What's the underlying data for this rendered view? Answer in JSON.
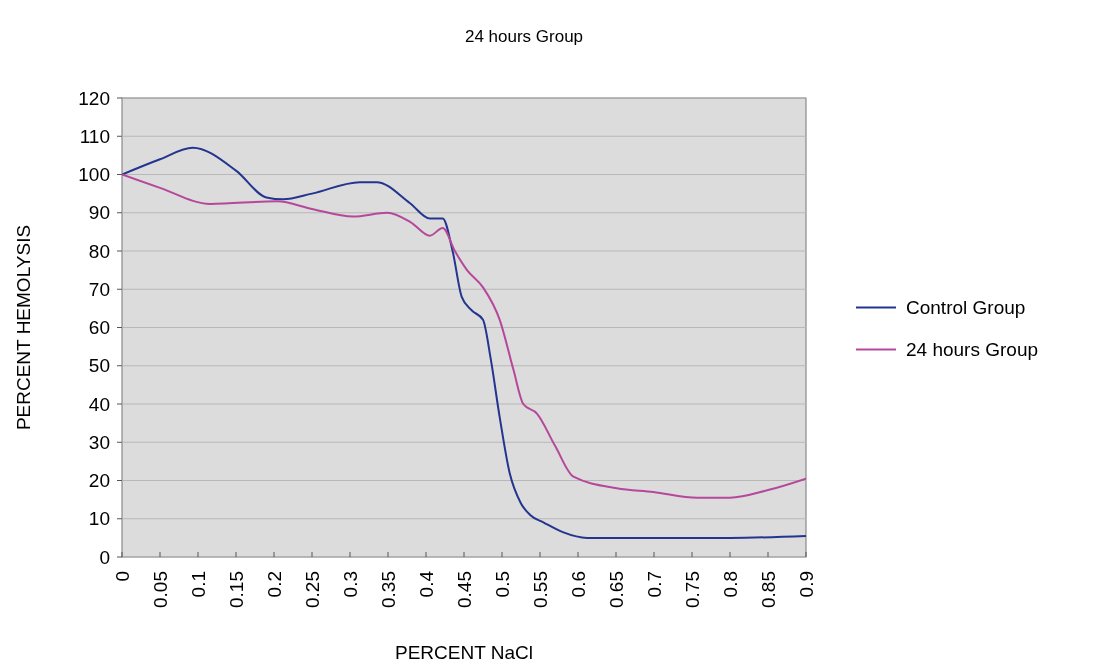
{
  "chart_data": {
    "type": "line",
    "title": "24 hours Group",
    "xlabel": "PERCENT NaCl",
    "ylabel": "PERCENT HEMOLYSIS",
    "xlim": [
      0,
      0.9
    ],
    "xticks": [
      0,
      0.05,
      0.1,
      0.15,
      0.2,
      0.25,
      0.3,
      0.35,
      0.4,
      0.45,
      0.5,
      0.55,
      0.6,
      0.65,
      0.7,
      0.75,
      0.8,
      0.85,
      0.9
    ],
    "ylim": [
      0,
      120
    ],
    "yticks": [
      0,
      10,
      20,
      30,
      40,
      50,
      60,
      70,
      80,
      90,
      100,
      110,
      120
    ],
    "grid": "y",
    "legend": "right",
    "marker": "none",
    "line_style": "solid",
    "series": [
      {
        "name": "Control Group",
        "color": "#23358f",
        "x": [
          0,
          0.05,
          0.093,
          0.15,
          0.19,
          0.212,
          0.25,
          0.313,
          0.335,
          0.379,
          0.405,
          0.422,
          0.435,
          0.447,
          0.46,
          0.475,
          0.485,
          0.497,
          0.51,
          0.525,
          0.537,
          0.555,
          0.58,
          0.612,
          0.7,
          0.8,
          0.9
        ],
        "values": [
          100,
          104,
          107,
          101,
          94,
          93.5,
          95,
          98,
          98,
          92.5,
          88.5,
          88.5,
          80,
          68,
          64.5,
          62,
          52,
          36.5,
          22,
          14,
          11,
          9,
          6.5,
          5,
          5,
          5,
          5.5
        ]
      },
      {
        "name": "24 hours Group",
        "color": "#b5489a",
        "x": [
          0,
          0.05,
          0.116,
          0.204,
          0.25,
          0.304,
          0.349,
          0.38,
          0.405,
          0.422,
          0.438,
          0.454,
          0.475,
          0.497,
          0.515,
          0.528,
          0.546,
          0.57,
          0.594,
          0.651,
          0.699,
          0.757,
          0.8,
          0.85,
          0.9
        ],
        "values": [
          100,
          96.5,
          92.3,
          93,
          91,
          89,
          90,
          87.5,
          84,
          86,
          80,
          75,
          70.5,
          62,
          49,
          40,
          37.5,
          29,
          21,
          18,
          17,
          15.5,
          15.5,
          17.5,
          20.5
        ]
      }
    ]
  }
}
